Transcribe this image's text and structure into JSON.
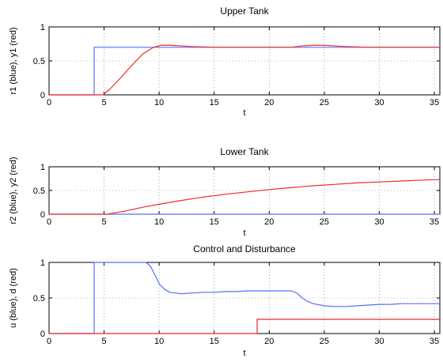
{
  "chart_data": [
    {
      "type": "line",
      "title": "Upper Tank",
      "xlabel": "t",
      "ylabel": "r1 (blue), y1 (red)",
      "xlim": [
        0,
        35.5
      ],
      "ylim": [
        0,
        1
      ],
      "xticks": [
        0,
        5,
        10,
        15,
        20,
        25,
        30,
        35
      ],
      "yticks": [
        0,
        0.5,
        1
      ],
      "xtick_labels": [
        "0",
        "5",
        "10",
        "15",
        "20",
        "25",
        "30",
        "35"
      ],
      "ytick_labels": [
        "0",
        "0.5",
        "1"
      ],
      "grid": true,
      "series": [
        {
          "color": "#5b6ef5",
          "x": [
            0,
            4.1,
            4.1,
            35.5
          ],
          "y": [
            0,
            0,
            0.7,
            0.7
          ]
        },
        {
          "color": "#ef2b2b",
          "x": [
            0,
            4.9,
            5.5,
            6.5,
            7.5,
            8.5,
            9.5,
            10.2,
            11,
            12,
            13,
            15,
            17,
            19,
            21,
            22,
            23,
            24,
            25,
            26,
            27,
            29,
            31,
            33,
            35.5
          ],
          "y": [
            0,
            0,
            0.08,
            0.25,
            0.43,
            0.6,
            0.7,
            0.73,
            0.73,
            0.72,
            0.71,
            0.7,
            0.7,
            0.7,
            0.7,
            0.7,
            0.72,
            0.73,
            0.73,
            0.72,
            0.71,
            0.7,
            0.7,
            0.7,
            0.7
          ]
        }
      ]
    },
    {
      "type": "line",
      "title": "Lower Tank",
      "xlabel": "t",
      "ylabel": "r2 (blue), y2 (red)",
      "xlim": [
        0,
        35.5
      ],
      "ylim": [
        0,
        1
      ],
      "xticks": [
        0,
        5,
        10,
        15,
        20,
        25,
        30,
        35
      ],
      "yticks": [
        0,
        0.5,
        1
      ],
      "xtick_labels": [
        "0",
        "5",
        "10",
        "15",
        "20",
        "25",
        "30",
        "35"
      ],
      "ytick_labels": [
        "0",
        "0.5",
        "1"
      ],
      "grid": true,
      "series": [
        {
          "color": "#5b6ef5",
          "x": [
            0,
            35.5
          ],
          "y": [
            0,
            0
          ]
        },
        {
          "color": "#ef2b2b",
          "x": [
            0,
            5.3,
            6,
            7,
            8,
            9,
            10,
            12,
            14,
            16,
            18,
            20,
            22,
            24,
            26,
            28,
            30,
            32,
            34,
            35.5
          ],
          "y": [
            0,
            0,
            0.03,
            0.07,
            0.12,
            0.17,
            0.21,
            0.29,
            0.36,
            0.42,
            0.47,
            0.52,
            0.56,
            0.6,
            0.63,
            0.66,
            0.68,
            0.7,
            0.72,
            0.73
          ]
        }
      ]
    },
    {
      "type": "line",
      "title": "Control and Disturbance",
      "xlabel": "t",
      "ylabel": "u (blue), d (red)",
      "xlim": [
        0,
        35.5
      ],
      "ylim": [
        0,
        1
      ],
      "xticks": [
        0,
        5,
        10,
        15,
        20,
        25,
        30,
        35
      ],
      "yticks": [
        0,
        0.5,
        1
      ],
      "xtick_labels": [
        "0",
        "5",
        "10",
        "15",
        "20",
        "25",
        "30",
        "35"
      ],
      "ytick_labels": [
        "0",
        "0.5",
        "1"
      ],
      "grid": true,
      "series": [
        {
          "color": "#5b6ef5",
          "x": [
            0,
            4.1,
            4.1,
            8.8,
            9.2,
            9.6,
            10,
            10.5,
            11,
            12,
            13,
            14,
            15,
            16,
            17,
            18,
            19,
            20,
            21,
            22,
            22.5,
            23,
            23.5,
            24,
            25,
            26,
            27,
            28,
            29,
            30,
            31,
            32,
            33,
            34,
            35.5
          ],
          "y": [
            0,
            0,
            1,
            1,
            0.95,
            0.83,
            0.7,
            0.62,
            0.58,
            0.56,
            0.57,
            0.58,
            0.58,
            0.59,
            0.59,
            0.6,
            0.6,
            0.6,
            0.6,
            0.6,
            0.57,
            0.5,
            0.45,
            0.42,
            0.39,
            0.38,
            0.38,
            0.39,
            0.4,
            0.41,
            0.41,
            0.42,
            0.42,
            0.42,
            0.42
          ]
        },
        {
          "color": "#ef2b2b",
          "x": [
            0,
            18.9,
            18.9,
            35.5
          ],
          "y": [
            0,
            0,
            0.2,
            0.2
          ]
        }
      ]
    }
  ]
}
